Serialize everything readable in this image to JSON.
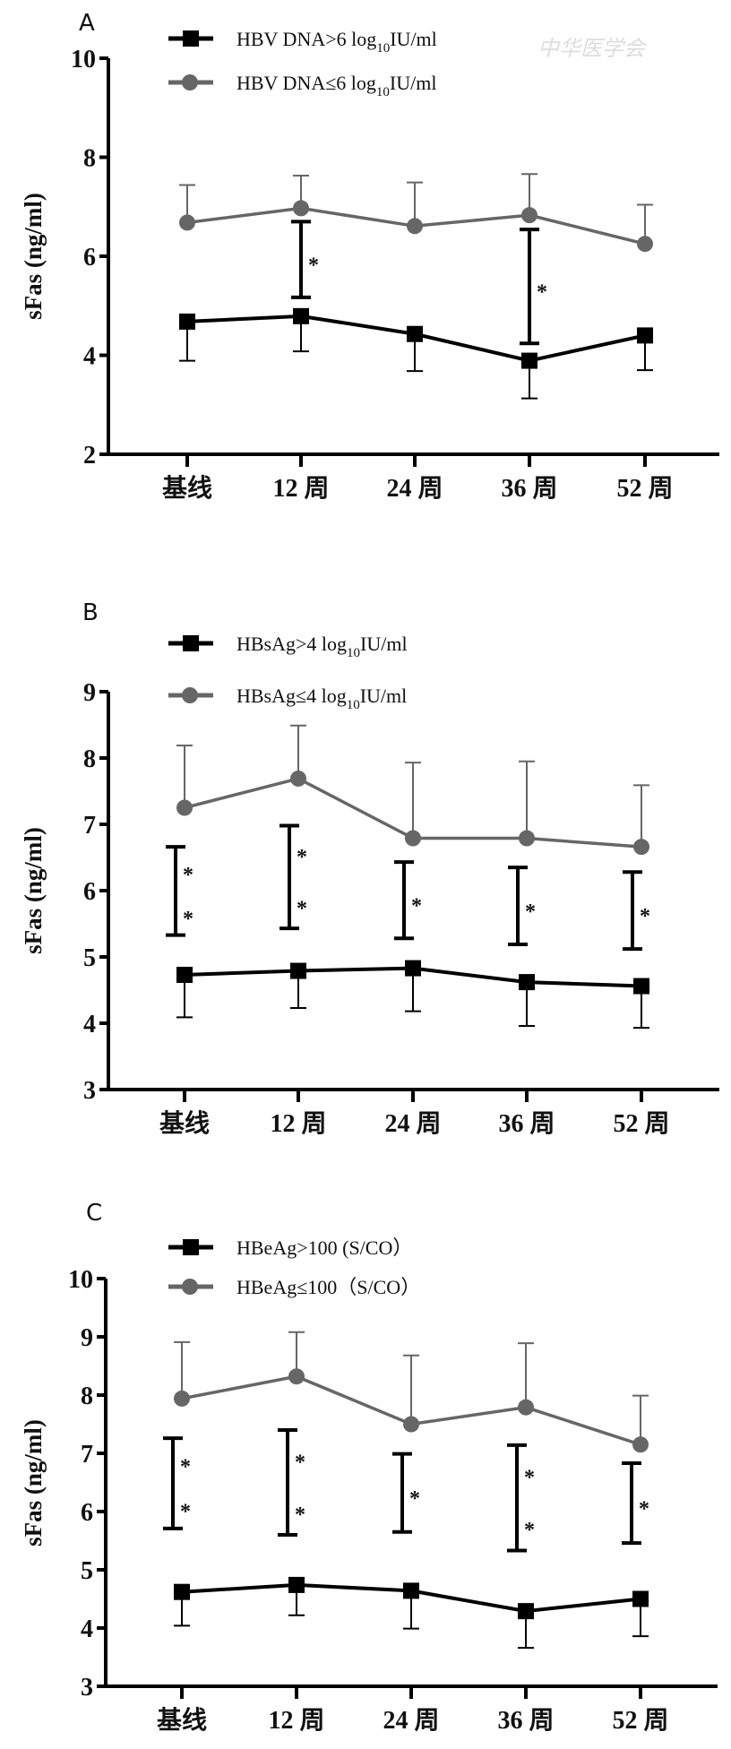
{
  "colors": {
    "high": "#000000",
    "low": "#666666"
  },
  "chart_data": [
    {
      "panel": "A",
      "type": "line",
      "watermark": "中华医学会",
      "ylabel": "sFas (ng/ml)",
      "ylim": [
        2,
        10
      ],
      "yticks": [
        "2",
        "4",
        "6",
        "8",
        "10"
      ],
      "ytick_values": [
        2,
        4,
        6,
        8,
        10
      ],
      "categories": [
        "基线",
        "12 周",
        "24 周",
        "36 周",
        "52 周"
      ],
      "legend": "top-left",
      "series": [
        {
          "name": "HBV DNA>6 log10IU/ml",
          "label_main": "HBV DNA>6 log",
          "label_sub": "10",
          "label_tail": "IU/ml",
          "marker": "square",
          "color": "#000000",
          "values": [
            4.68,
            4.79,
            4.43,
            3.89,
            4.4
          ],
          "error_lower": [
            3.89,
            4.08,
            3.68,
            3.13,
            3.7
          ]
        },
        {
          "name": "HBV DNA≤6 log10IU/ml",
          "label_main": "HBV DNA≤6 log",
          "label_sub": "10",
          "label_tail": "IU/ml",
          "marker": "circle",
          "color": "#666666",
          "values": [
            6.68,
            6.97,
            6.61,
            6.83,
            6.25
          ],
          "error_upper": [
            7.44,
            7.63,
            7.49,
            7.66,
            7.04
          ]
        }
      ],
      "significance": [
        {
          "category": 1,
          "from": 5.17,
          "to": 6.7,
          "stars": "*",
          "count": 1
        },
        {
          "category": 3,
          "from": 4.24,
          "to": 6.54,
          "stars": "*",
          "count": 1
        }
      ]
    },
    {
      "panel": "B",
      "type": "line",
      "ylabel": "sFas (ng/ml)",
      "ylim": [
        3,
        9
      ],
      "yticks": [
        "3",
        "4",
        "5",
        "6",
        "7",
        "8",
        "9"
      ],
      "ytick_values": [
        3,
        4,
        5,
        6,
        7,
        8,
        9
      ],
      "categories": [
        "基线",
        "12 周",
        "24 周",
        "36 周",
        "52 周"
      ],
      "legend": "top-left",
      "series": [
        {
          "name": "HBsAg>4 log10IU/ml",
          "label_main": "HBsAg>4 log",
          "label_sub": "10",
          "label_tail": "IU/ml",
          "marker": "square",
          "color": "#000000",
          "values": [
            4.73,
            4.79,
            4.83,
            4.62,
            4.56
          ],
          "error_lower": [
            4.09,
            4.23,
            4.18,
            3.96,
            3.93
          ]
        },
        {
          "name": "HBsAg≤4 log10IU/ml",
          "label_main": "HBsAg≤4 log",
          "label_sub": "10",
          "label_tail": "IU/ml",
          "marker": "circle",
          "color": "#666666",
          "values": [
            7.25,
            7.69,
            6.79,
            6.79,
            6.66
          ],
          "error_upper": [
            8.19,
            8.49,
            7.93,
            7.95,
            7.59
          ]
        }
      ],
      "significance": [
        {
          "category": 0,
          "from": 5.33,
          "to": 6.66,
          "stars": "**",
          "count": 2
        },
        {
          "category": 1,
          "from": 5.43,
          "to": 6.98,
          "stars": "**",
          "count": 2
        },
        {
          "category": 2,
          "from": 5.28,
          "to": 6.43,
          "stars": "*",
          "count": 1
        },
        {
          "category": 3,
          "from": 5.19,
          "to": 6.35,
          "stars": "*",
          "count": 1
        },
        {
          "category": 4,
          "from": 5.12,
          "to": 6.28,
          "stars": "*",
          "count": 1
        }
      ]
    },
    {
      "panel": "C",
      "type": "line",
      "ylabel": "sFas (ng/ml)",
      "ylim": [
        3,
        10
      ],
      "yticks": [
        "3",
        "4",
        "5",
        "6",
        "7",
        "8",
        "9",
        "10"
      ],
      "ytick_values": [
        3,
        4,
        5,
        6,
        7,
        8,
        9,
        10
      ],
      "categories": [
        "基线",
        "12 周",
        "24 周",
        "36 周",
        "52 周"
      ],
      "legend": "top-left",
      "series": [
        {
          "name": "HBeAg>100 (S/CO）",
          "label_main": "HBeAg>100 (S/CO）",
          "label_sub": "",
          "label_tail": "",
          "marker": "square",
          "color": "#000000",
          "values": [
            4.62,
            4.74,
            4.64,
            4.29,
            4.5
          ],
          "error_lower": [
            4.04,
            4.22,
            3.99,
            3.66,
            3.86
          ]
        },
        {
          "name": "HBeAg≤100（S/CO）",
          "label_main": "HBeAg≤100（S/CO）",
          "label_sub": "",
          "label_tail": "",
          "marker": "circle",
          "color": "#666666",
          "values": [
            7.94,
            8.32,
            7.5,
            7.79,
            7.15
          ],
          "error_upper": [
            8.91,
            9.08,
            8.68,
            8.89,
            7.99
          ]
        }
      ],
      "significance": [
        {
          "category": 0,
          "from": 5.71,
          "to": 7.26,
          "stars": "**",
          "count": 2
        },
        {
          "category": 1,
          "from": 5.6,
          "to": 7.4,
          "stars": "**",
          "count": 2
        },
        {
          "category": 2,
          "from": 5.65,
          "to": 6.99,
          "stars": "*",
          "count": 1
        },
        {
          "category": 3,
          "from": 5.33,
          "to": 7.14,
          "stars": "**",
          "count": 2
        },
        {
          "category": 4,
          "from": 5.46,
          "to": 6.83,
          "stars": "*",
          "count": 1
        }
      ]
    }
  ]
}
